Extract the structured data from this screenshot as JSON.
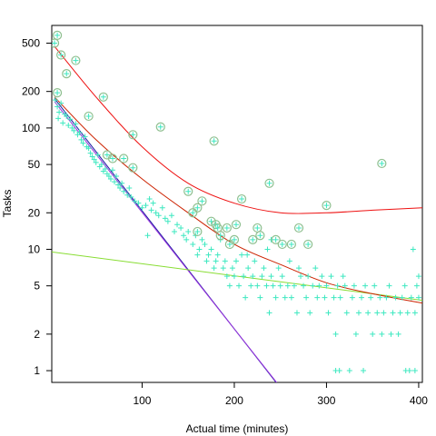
{
  "chart_data": {
    "type": "scatter",
    "title": "",
    "xlabel": "Actual time (minutes)",
    "ylabel": "Tasks",
    "xlim": [
      2,
      404
    ],
    "ylim": [
      0.8,
      700
    ],
    "y_scale": "log",
    "grid": false,
    "legend": "none",
    "x_ticks": [
      100,
      200,
      300,
      400
    ],
    "y_ticks": [
      1,
      2,
      5,
      10,
      20,
      50,
      100,
      200,
      500
    ],
    "colors": {
      "plus_points": "#3de8c0",
      "circle_points": "#8fbf8f",
      "curve_outer": "#ee1111",
      "curve_inner": "#cc2200",
      "line_blue": "#1a1aa0",
      "line_purple": "#9933dd",
      "line_green": "#88dd33"
    },
    "series": [
      {
        "marker": "plus",
        "points": [
          [
            6,
            170
          ],
          [
            8,
            150
          ],
          [
            9,
            120
          ],
          [
            10,
            135
          ],
          [
            12,
            160
          ],
          [
            14,
            110
          ],
          [
            16,
            130
          ],
          [
            18,
            125
          ],
          [
            20,
            105
          ],
          [
            22,
            118
          ],
          [
            24,
            100
          ],
          [
            26,
            95
          ],
          [
            28,
            108
          ],
          [
            30,
            88
          ],
          [
            32,
            92
          ],
          [
            34,
            80
          ],
          [
            36,
            75
          ],
          [
            38,
            85
          ],
          [
            40,
            70
          ],
          [
            42,
            68
          ],
          [
            44,
            62
          ],
          [
            46,
            58
          ],
          [
            48,
            55
          ],
          [
            50,
            52
          ],
          [
            52,
            60
          ],
          [
            54,
            48
          ],
          [
            56,
            50
          ],
          [
            58,
            44
          ],
          [
            60,
            46
          ],
          [
            62,
            42
          ],
          [
            64,
            40
          ],
          [
            66,
            38
          ],
          [
            68,
            45
          ],
          [
            70,
            36
          ],
          [
            72,
            40
          ],
          [
            74,
            34
          ],
          [
            76,
            32
          ],
          [
            78,
            35
          ],
          [
            80,
            30
          ],
          [
            84,
            28
          ],
          [
            86,
            32
          ],
          [
            88,
            27
          ],
          [
            92,
            25
          ],
          [
            96,
            24
          ],
          [
            100,
            22
          ],
          [
            104,
            23
          ],
          [
            106,
            13
          ],
          [
            108,
            26
          ],
          [
            110,
            21
          ],
          [
            112,
            24
          ],
          [
            115,
            20
          ],
          [
            118,
            19
          ],
          [
            122,
            22
          ],
          [
            125,
            18
          ],
          [
            128,
            17
          ],
          [
            132,
            19
          ],
          [
            135,
            14
          ],
          [
            138,
            16
          ],
          [
            142,
            15
          ],
          [
            145,
            13
          ],
          [
            148,
            12
          ],
          [
            150,
            14
          ],
          [
            155,
            11
          ],
          [
            158,
            13
          ],
          [
            160,
            9
          ],
          [
            162,
            10
          ],
          [
            165,
            12
          ],
          [
            168,
            11
          ],
          [
            170,
            8
          ],
          [
            172,
            9
          ],
          [
            175,
            10
          ],
          [
            178,
            7
          ],
          [
            180,
            8
          ],
          [
            182,
            9
          ],
          [
            185,
            12
          ],
          [
            188,
            7
          ],
          [
            190,
            8
          ],
          [
            192,
            6
          ],
          [
            195,
            5
          ],
          [
            198,
            7
          ],
          [
            200,
            6
          ],
          [
            202,
            8
          ],
          [
            205,
            5
          ],
          [
            208,
            9
          ],
          [
            210,
            6
          ],
          [
            212,
            4
          ],
          [
            215,
            7
          ],
          [
            218,
            5
          ],
          [
            220,
            6
          ],
          [
            222,
            8
          ],
          [
            225,
            5
          ],
          [
            228,
            4
          ],
          [
            230,
            6
          ],
          [
            232,
            7
          ],
          [
            235,
            5
          ],
          [
            238,
            3
          ],
          [
            240,
            6
          ],
          [
            242,
            5
          ],
          [
            245,
            4
          ],
          [
            248,
            7
          ],
          [
            250,
            5
          ],
          [
            252,
            6
          ],
          [
            255,
            4
          ],
          [
            258,
            5
          ],
          [
            260,
            8
          ],
          [
            262,
            4
          ],
          [
            265,
            5
          ],
          [
            268,
            3
          ],
          [
            270,
            7
          ],
          [
            272,
            6
          ],
          [
            275,
            5
          ],
          [
            278,
            4
          ],
          [
            280,
            6
          ],
          [
            282,
            3
          ],
          [
            285,
            5
          ],
          [
            288,
            7
          ],
          [
            290,
            4
          ],
          [
            292,
            5
          ],
          [
            295,
            6
          ],
          [
            298,
            4
          ],
          [
            300,
            5
          ],
          [
            302,
            3
          ],
          [
            305,
            6
          ],
          [
            308,
            4
          ],
          [
            310,
            2
          ],
          [
            312,
            5
          ],
          [
            315,
            4
          ],
          [
            318,
            6
          ],
          [
            320,
            5
          ],
          [
            322,
            3
          ],
          [
            325,
            1
          ],
          [
            328,
            4
          ],
          [
            330,
            5
          ],
          [
            332,
            2
          ],
          [
            335,
            3
          ],
          [
            338,
            4
          ],
          [
            340,
            1
          ],
          [
            342,
            5
          ],
          [
            345,
            3
          ],
          [
            348,
            4
          ],
          [
            350,
            2
          ],
          [
            352,
            5
          ],
          [
            355,
            3
          ],
          [
            358,
            4
          ],
          [
            360,
            2
          ],
          [
            362,
            3
          ],
          [
            365,
            4
          ],
          [
            368,
            5
          ],
          [
            370,
            2
          ],
          [
            372,
            3
          ],
          [
            375,
            4
          ],
          [
            378,
            2
          ],
          [
            380,
            3
          ],
          [
            382,
            4
          ],
          [
            385,
            5
          ],
          [
            388,
            3
          ],
          [
            390,
            1
          ],
          [
            392,
            4
          ],
          [
            394,
            10
          ],
          [
            396,
            3
          ],
          [
            398,
            5
          ],
          [
            400,
            6
          ],
          [
            400,
            4
          ],
          [
            386,
            1
          ],
          [
            396,
            1
          ],
          [
            310,
            1
          ],
          [
            314,
            1
          ],
          [
            240,
            12
          ],
          [
            236,
            10
          ],
          [
            214,
            9
          ]
        ]
      },
      {
        "marker": "circle-plus",
        "points": [
          [
            5,
            500
          ],
          [
            8,
            580
          ],
          [
            8,
            195
          ],
          [
            12,
            400
          ],
          [
            18,
            280
          ],
          [
            28,
            360
          ],
          [
            42,
            125
          ],
          [
            58,
            180
          ],
          [
            62,
            60
          ],
          [
            68,
            56
          ],
          [
            80,
            56
          ],
          [
            90,
            88
          ],
          [
            90,
            47
          ],
          [
            120,
            102
          ],
          [
            150,
            30
          ],
          [
            155,
            20
          ],
          [
            160,
            22
          ],
          [
            160,
            14
          ],
          [
            165,
            25
          ],
          [
            175,
            17
          ],
          [
            178,
            78
          ],
          [
            180,
            16
          ],
          [
            182,
            15
          ],
          [
            185,
            13
          ],
          [
            192,
            15
          ],
          [
            195,
            11
          ],
          [
            200,
            12
          ],
          [
            202,
            16
          ],
          [
            208,
            26
          ],
          [
            220,
            12
          ],
          [
            225,
            15
          ],
          [
            228,
            13
          ],
          [
            238,
            35
          ],
          [
            245,
            12
          ],
          [
            252,
            11
          ],
          [
            262,
            11
          ],
          [
            270,
            15
          ],
          [
            280,
            11
          ],
          [
            300,
            23
          ],
          [
            360,
            51
          ]
        ]
      }
    ],
    "lines": [
      {
        "name_color": "line_blue",
        "points": [
          [
            5,
            175
          ],
          [
            250,
            0.72
          ]
        ]
      },
      {
        "name_color": "line_purple",
        "points": [
          [
            5,
            165
          ],
          [
            250,
            0.73
          ]
        ]
      },
      {
        "name_color": "line_green",
        "points": [
          [
            2,
            9.5
          ],
          [
            404,
            3.8
          ]
        ]
      },
      {
        "name_color": "curve_inner",
        "points": [
          [
            5,
            180
          ],
          [
            50,
            80
          ],
          [
            100,
            38
          ],
          [
            150,
            20
          ],
          [
            200,
            11
          ],
          [
            250,
            7.5
          ],
          [
            300,
            5.3
          ],
          [
            350,
            4.3
          ],
          [
            404,
            3.6
          ]
        ]
      },
      {
        "name_color": "curve_outer",
        "points": [
          [
            5,
            470
          ],
          [
            50,
            180
          ],
          [
            100,
            70
          ],
          [
            150,
            35
          ],
          [
            200,
            24
          ],
          [
            250,
            20
          ],
          [
            300,
            20
          ],
          [
            350,
            21
          ],
          [
            404,
            22
          ]
        ]
      }
    ]
  }
}
